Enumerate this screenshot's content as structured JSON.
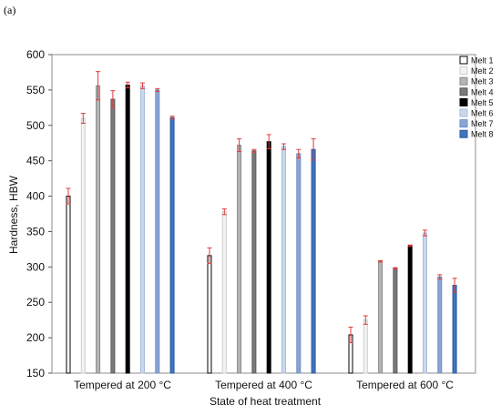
{
  "panel_label": "(a)",
  "chart_data": {
    "type": "bar",
    "xlabel": "State of heat treatment",
    "ylabel": "Hardness, HBW",
    "ylim": [
      150,
      600
    ],
    "yticks": [
      150,
      200,
      250,
      300,
      350,
      400,
      450,
      500,
      550,
      600
    ],
    "grid": false,
    "legend_position": "top-right",
    "categories": [
      "Tempered at 200 °C",
      "Tempered at 400 °C",
      "Tempered at 600 °C"
    ],
    "series": [
      {
        "name": "Melt 1",
        "color": "#ffffff",
        "stroke": "#000000",
        "values": [
          400,
          316,
          204
        ],
        "errors": [
          11,
          11,
          11
        ]
      },
      {
        "name": "Melt 2",
        "color": "#f2f2f2",
        "stroke": "#cfcfcf",
        "values": [
          510,
          378,
          225
        ],
        "errors": [
          7,
          4,
          6
        ]
      },
      {
        "name": "Melt 3",
        "color": "#b5b5b5",
        "stroke": "#8a8a8a",
        "values": [
          556,
          472,
          308
        ],
        "errors": [
          20,
          9,
          1
        ]
      },
      {
        "name": "Melt 4",
        "color": "#7a7a7a",
        "stroke": "#5a5a5a",
        "values": [
          537,
          464,
          298
        ],
        "errors": [
          12,
          2,
          1
        ]
      },
      {
        "name": "Melt 5",
        "color": "#000000",
        "stroke": "#000000",
        "values": [
          557,
          477,
          330
        ],
        "errors": [
          4,
          10,
          1
        ]
      },
      {
        "name": "Melt 6",
        "color": "#c9d8ee",
        "stroke": "#a9bcd8",
        "values": [
          556,
          470,
          348
        ],
        "errors": [
          4,
          4,
          4
        ]
      },
      {
        "name": "Melt 7",
        "color": "#8aa6d4",
        "stroke": "#6d8cc2",
        "values": [
          550,
          460,
          286
        ],
        "errors": [
          2,
          6,
          3
        ]
      },
      {
        "name": "Melt 8",
        "color": "#3f74bf",
        "stroke": "#2a5a9f",
        "values": [
          511,
          466,
          274
        ],
        "errors": [
          2,
          15,
          10
        ]
      }
    ],
    "error_bar_color": "#e23a3a"
  }
}
